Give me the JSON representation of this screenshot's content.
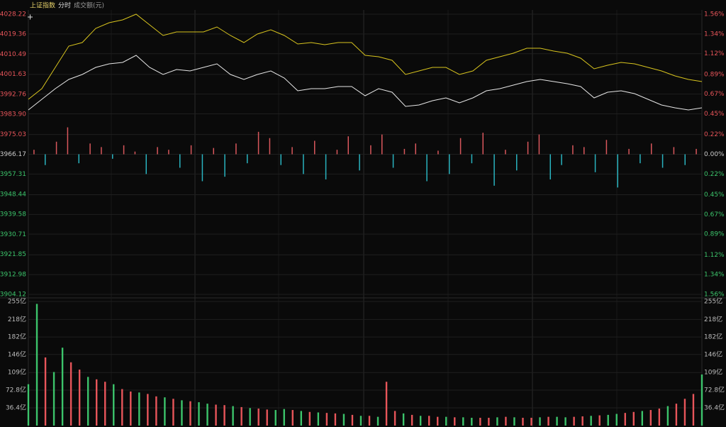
{
  "header": {
    "title": "上证指数",
    "mode": "分时",
    "volume_label": "成交额(元)"
  },
  "chart_data": [
    {
      "type": "line",
      "ylim": [
        3904.12,
        4028.22
      ],
      "yticks": [
        {
          "value": 4028.22,
          "label": "4028.22"
        },
        4019.36,
        4010.49,
        4001.63,
        3992.76,
        {
          "value": 3983.9,
          "label": "3983.90"
        },
        3975.03,
        3966.17,
        3957.31,
        3948.44,
        3939.58,
        3930.71,
        3921.85,
        3912.98,
        3904.12
      ],
      "y2lim": [
        -1.56,
        1.56
      ],
      "y2ticks": [
        {
          "value": 1.56,
          "label": "1.56%"
        },
        {
          "value": 1.34,
          "label": "1.34%"
        },
        {
          "value": 1.12,
          "label": "1.12%"
        },
        {
          "value": 0.89,
          "label": "0.89%"
        },
        {
          "value": 0.67,
          "label": "0.67%"
        },
        {
          "value": 0.45,
          "label": "0.45%"
        },
        {
          "value": 0.22,
          "label": "0.22%"
        },
        {
          "value": 0,
          "label": "0.00%"
        },
        {
          "value": -0.22,
          "label": "0.22%"
        },
        {
          "value": -0.45,
          "label": "0.45%"
        },
        {
          "value": -0.67,
          "label": "0.67%"
        },
        {
          "value": -0.89,
          "label": "0.89%"
        },
        {
          "value": -1.12,
          "label": "1.12%"
        },
        {
          "value": -1.34,
          "label": "1.34%"
        },
        {
          "value": -1.56,
          "label": "1.56%"
        }
      ],
      "up_color": "#e8555a",
      "down_color": "#3cc46b",
      "flat_color": "#cccccc",
      "series": [
        {
          "type": "line",
          "color": "#d8c41e",
          "values": [
            3990.52,
            3995.23,
            4004.66,
            4014.08,
            4015.65,
            4021.94,
            4024.45,
            4025.71,
            4028.22,
            4023.51,
            4018.79,
            4020.37,
            4020.37,
            4020.37,
            4022.56,
            4018.79,
            4015.65,
            4019.42,
            4021.31,
            4018.79,
            4015.02,
            4015.65,
            4014.71,
            4015.65,
            4015.65,
            4010.0,
            4009.37,
            4007.8,
            4001.51,
            4003.08,
            4004.66,
            4004.66,
            4001.51,
            4003.08,
            4007.8,
            4009.37,
            4010.94,
            4013.14,
            4013.14,
            4011.88,
            4010.94,
            4008.74,
            4004.03,
            4005.6,
            4006.86,
            4006.23,
            4004.66,
            4003.08,
            4000.89,
            3999.31,
            3998.37
          ]
        },
        {
          "type": "line",
          "color": "#e6e6e6",
          "values": [
            3985.81,
            3990.52,
            3995.23,
            3999.32,
            4001.51,
            4004.66,
            4006.23,
            4006.86,
            4010.0,
            4004.66,
            4001.51,
            4003.71,
            4003.08,
            4004.66,
            4006.23,
            4001.51,
            3999.32,
            4001.51,
            4003.08,
            3999.94,
            3994.29,
            3995.23,
            3995.23,
            3996.17,
            3996.17,
            3992.09,
            3995.23,
            3993.66,
            3987.38,
            3988.0,
            3989.89,
            3991.15,
            3988.95,
            3991.15,
            3994.29,
            3995.23,
            3996.8,
            3998.37,
            3999.32,
            3998.37,
            3997.43,
            3996.17,
            3991.15,
            3993.66,
            3994.29,
            3993.03,
            3990.52,
            3988.0,
            3986.75,
            3985.81,
            3986.75
          ]
        },
        {
          "type": "bar",
          "axis": "y2",
          "up_color": "#d9575c",
          "down_color": "#29b3bf",
          "values": [
            0.05,
            -0.12,
            0.14,
            0.3,
            -0.1,
            0.12,
            0.08,
            -0.05,
            0.1,
            0.03,
            -0.22,
            0.08,
            0.05,
            -0.15,
            0.1,
            -0.3,
            0.07,
            -0.25,
            0.12,
            -0.1,
            0.25,
            0.18,
            -0.12,
            0.08,
            -0.22,
            0.15,
            -0.28,
            0.05,
            0.2,
            -0.18,
            0.1,
            0.22,
            -0.15,
            0.06,
            0.12,
            -0.3,
            0.04,
            -0.22,
            0.18,
            -0.1,
            0.24,
            -0.35,
            0.05,
            -0.18,
            0.14,
            0.22,
            -0.28,
            -0.12,
            0.1,
            0.08,
            -0.2,
            0.16,
            -0.37,
            0.06,
            -0.1,
            0.12,
            -0.15,
            0.08,
            -0.12,
            0.06
          ]
        }
      ]
    },
    {
      "type": "bar",
      "ylim": [
        0,
        255
      ],
      "yticks": [
        {
          "value": 255,
          "label": "255亿"
        },
        {
          "value": 218,
          "label": "218亿"
        },
        {
          "value": 182,
          "label": "182亿"
        },
        {
          "value": 146,
          "label": "146亿"
        },
        {
          "value": 109,
          "label": "109亿"
        },
        {
          "value": 72.8,
          "label": "72.8亿"
        },
        {
          "value": 36.4,
          "label": "36.4亿"
        }
      ],
      "values": [
        85,
        250,
        140,
        110,
        160,
        130,
        115,
        100,
        95,
        90,
        85,
        75,
        70,
        68,
        65,
        60,
        58,
        55,
        52,
        50,
        48,
        45,
        43,
        42,
        40,
        38,
        36,
        35,
        33,
        32,
        34,
        32,
        30,
        28,
        27,
        26,
        25,
        24,
        22,
        20,
        20,
        18,
        90,
        30,
        25,
        22,
        20,
        20,
        18,
        18,
        17,
        17,
        16,
        16,
        16,
        17,
        18,
        17,
        16,
        16,
        17,
        18,
        18,
        17,
        18,
        19,
        20,
        21,
        22,
        24,
        26,
        28,
        30,
        32,
        35,
        40,
        45,
        55,
        65,
        105
      ],
      "colors": [
        "#3cc46b",
        "#3cc46b",
        "#e8555a",
        "#3cc46b",
        "#3cc46b",
        "#e8555a",
        "#e8555a",
        "#3cc46b",
        "#e8555a",
        "#e8555a",
        "#3cc46b",
        "#e8555a",
        "#e8555a",
        "#3cc46b",
        "#e8555a",
        "#e8555a",
        "#3cc46b",
        "#e8555a",
        "#3cc46b",
        "#e8555a",
        "#3cc46b",
        "#3cc46b",
        "#e8555a",
        "#e8555a",
        "#3cc46b",
        "#e8555a",
        "#3cc46b",
        "#e8555a",
        "#e8555a",
        "#3cc46b",
        "#3cc46b",
        "#e8555a",
        "#3cc46b",
        "#e8555a",
        "#3cc46b",
        "#e8555a",
        "#e8555a",
        "#3cc46b",
        "#e8555a",
        "#3cc46b",
        "#e8555a",
        "#3cc46b",
        "#e8555a",
        "#e8555a",
        "#3cc46b",
        "#e8555a",
        "#3cc46b",
        "#e8555a",
        "#e8555a",
        "#3cc46b",
        "#e8555a",
        "#3cc46b",
        "#3cc46b",
        "#e8555a",
        "#e8555a",
        "#3cc46b",
        "#e8555a",
        "#3cc46b",
        "#e8555a",
        "#e8555a",
        "#3cc46b",
        "#e8555a",
        "#3cc46b",
        "#3cc46b",
        "#e8555a",
        "#e8555a",
        "#3cc46b",
        "#e8555a",
        "#3cc46b",
        "#3cc46b",
        "#e8555a",
        "#e8555a",
        "#3cc46b",
        "#e8555a",
        "#e8555a",
        "#3cc46b",
        "#e8555a",
        "#e8555a",
        "#e8555a",
        "#3cc46b"
      ],
      "tick_color": "#bbbbbb"
    }
  ]
}
